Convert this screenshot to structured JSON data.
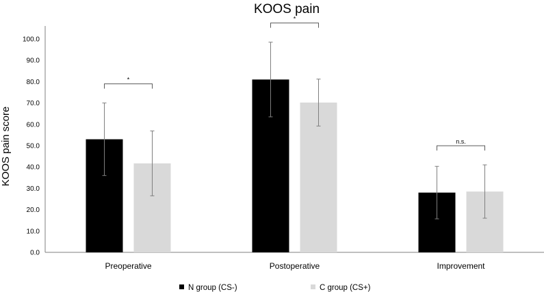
{
  "chart_data": {
    "type": "bar",
    "title": "KOOS pain",
    "xlabel": "",
    "ylabel": "KOOS pain score",
    "ylim": [
      0,
      105
    ],
    "yticks": [
      0,
      10,
      20,
      30,
      40,
      50,
      60,
      70,
      80,
      90,
      100
    ],
    "ytick_labels": [
      "0.0",
      "10.0",
      "20.0",
      "30.0",
      "40.0",
      "50.0",
      "60.0",
      "70.0",
      "80.0",
      "90.0",
      "100.0"
    ],
    "categories": [
      "Preoperative",
      "Postoperative",
      "Improvement"
    ],
    "series": [
      {
        "name": "N group (CS-)",
        "color": "#000000",
        "values": [
          53.0,
          81.0,
          28.0
        ],
        "error": [
          17.0,
          17.5,
          12.3
        ]
      },
      {
        "name": "C group (CS+)",
        "color": "#d9d9d9",
        "values": [
          41.7,
          70.2,
          28.5
        ],
        "error": [
          15.2,
          11.0,
          12.5
        ]
      }
    ],
    "significance": [
      "*",
      "*",
      "n.s."
    ],
    "grid": false,
    "legend_position": "bottom-center"
  }
}
